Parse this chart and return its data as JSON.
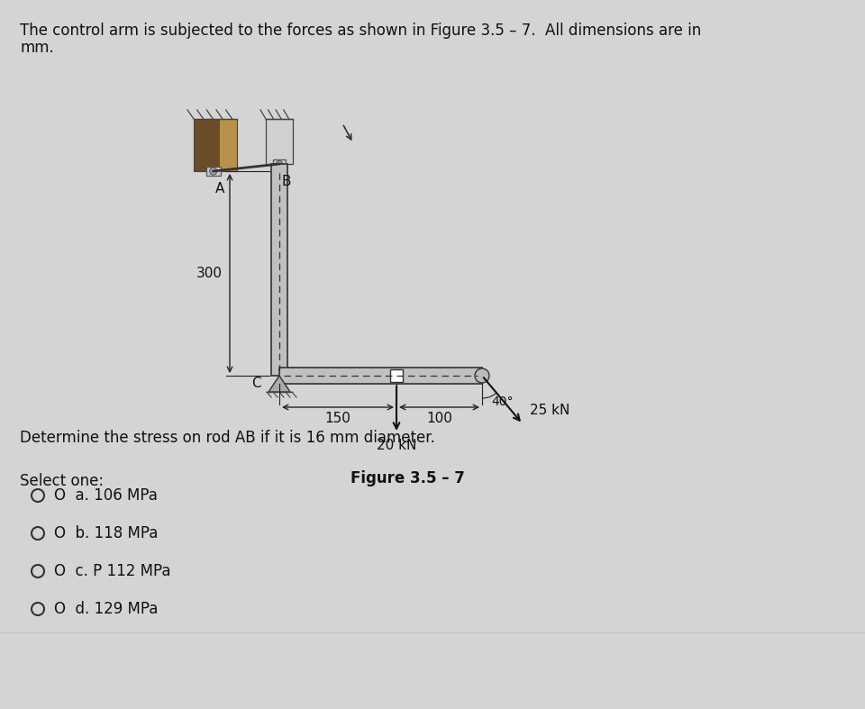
{
  "bg_color": "#d4d4d4",
  "fig_bg": "#e8e8e8",
  "title_line1": "The control arm is subjected to the forces as shown in Figure 3.5 – 7.  All dimensions are in",
  "title_line2": "mm.",
  "figure_caption": "Figure 3.5 – 7",
  "question_text": "Determine the stress on rod AB if it is 16 mm diameter.",
  "select_one_text": "Select one:",
  "options": [
    "a. 106 MPa",
    "b. 118 MPa",
    "c. P 112 MPa",
    "d. 129 MPa"
  ],
  "wall_dark": "#6b4c2a",
  "wall_mid": "#8c6535",
  "wall_light": "#b8924a",
  "arm_fill": "#c8c8c8",
  "arm_stroke": "#222222",
  "text_color": "#111111",
  "dim_color": "#222222",
  "pin_fill": "#dddddd"
}
